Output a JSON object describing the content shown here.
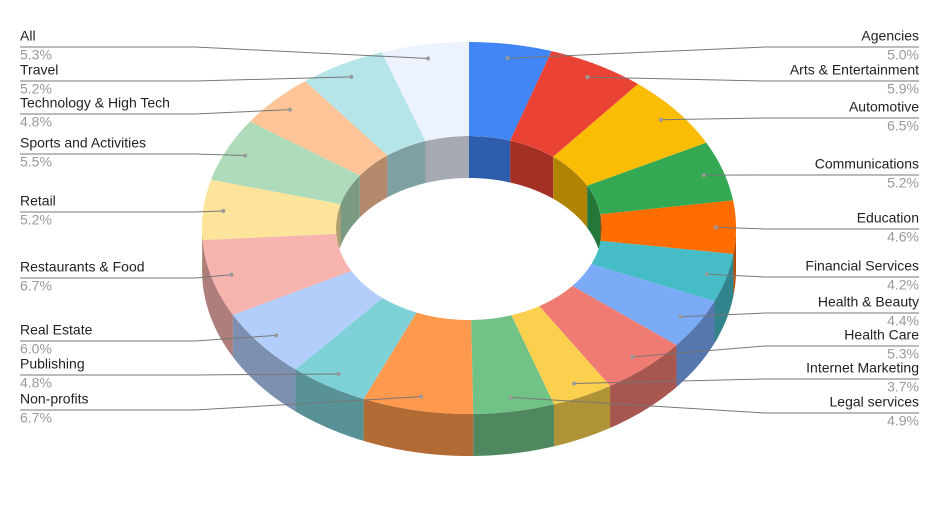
{
  "chart_data": {
    "type": "pie",
    "donut": true,
    "categories": [
      "Agencies",
      "Arts & Entertainment",
      "Automotive",
      "Communications",
      "Education",
      "Financial Services",
      "Health & Beauty",
      "Health Care",
      "Internet Marketing",
      "Legal services",
      "Non-profits",
      "Publishing",
      "Real Estate",
      "Restaurants & Food",
      "Retail",
      "Sports and Activities",
      "Technology & High Tech",
      "Travel",
      "All"
    ],
    "values": [
      5.0,
      5.9,
      6.5,
      5.2,
      4.6,
      4.2,
      4.4,
      5.3,
      3.7,
      4.9,
      6.7,
      4.8,
      6.0,
      6.7,
      5.2,
      5.5,
      4.8,
      5.2,
      5.3
    ],
    "value_labels": [
      "5.0%",
      "5.9%",
      "6.5%",
      "5.2%",
      "4.6%",
      "4.2%",
      "4.4%",
      "5.3%",
      "3.7%",
      "4.9%",
      "6.7%",
      "4.8%",
      "6.0%",
      "6.7%",
      "5.2%",
      "5.5%",
      "4.8%",
      "5.2%",
      "5.3%"
    ],
    "colors": [
      "#4285f4",
      "#ea4335",
      "#fbbc04",
      "#34a853",
      "#ff6d01",
      "#46bdc6",
      "#7baaf7",
      "#f07b72",
      "#fcd04f",
      "#71c287",
      "#ff994d",
      "#7ed1d7",
      "#b3cefb",
      "#f7b4ae",
      "#fde49b",
      "#aedcba",
      "#ffc599",
      "#b5e5e8",
      "#ecf3fe"
    ]
  }
}
